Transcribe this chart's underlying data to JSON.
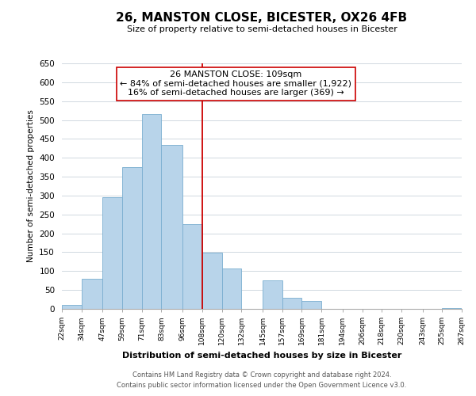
{
  "title": "26, MANSTON CLOSE, BICESTER, OX26 4FB",
  "subtitle": "Size of property relative to semi-detached houses in Bicester",
  "xlabel": "Distribution of semi-detached houses by size in Bicester",
  "ylabel": "Number of semi-detached properties",
  "bar_color": "#b8d4ea",
  "bar_edge_color": "#7aaed0",
  "background_color": "#ffffff",
  "grid_color": "#d0d8e0",
  "bin_edges": [
    22,
    34,
    47,
    59,
    71,
    83,
    96,
    108,
    120,
    132,
    145,
    157,
    169,
    181,
    194,
    206,
    218,
    230,
    243,
    255,
    267
  ],
  "bin_labels": [
    "22sqm",
    "34sqm",
    "47sqm",
    "59sqm",
    "71sqm",
    "83sqm",
    "96sqm",
    "108sqm",
    "120sqm",
    "132sqm",
    "145sqm",
    "157sqm",
    "169sqm",
    "181sqm",
    "194sqm",
    "206sqm",
    "218sqm",
    "230sqm",
    "243sqm",
    "255sqm",
    "267sqm"
  ],
  "counts": [
    10,
    80,
    295,
    375,
    515,
    435,
    225,
    148,
    107,
    0,
    75,
    30,
    22,
    0,
    0,
    0,
    0,
    0,
    0,
    3
  ],
  "vline_x": 108,
  "annotation_title": "26 MANSTON CLOSE: 109sqm",
  "annotation_line1": "← 84% of semi-detached houses are smaller (1,922)",
  "annotation_line2": "16% of semi-detached houses are larger (369) →",
  "vline_color": "#cc0000",
  "annotation_box_edge": "#cc0000",
  "ylim": [
    0,
    650
  ],
  "yticks": [
    0,
    50,
    100,
    150,
    200,
    250,
    300,
    350,
    400,
    450,
    500,
    550,
    600,
    650
  ],
  "footnote1": "Contains HM Land Registry data © Crown copyright and database right 2024.",
  "footnote2": "Contains public sector information licensed under the Open Government Licence v3.0."
}
